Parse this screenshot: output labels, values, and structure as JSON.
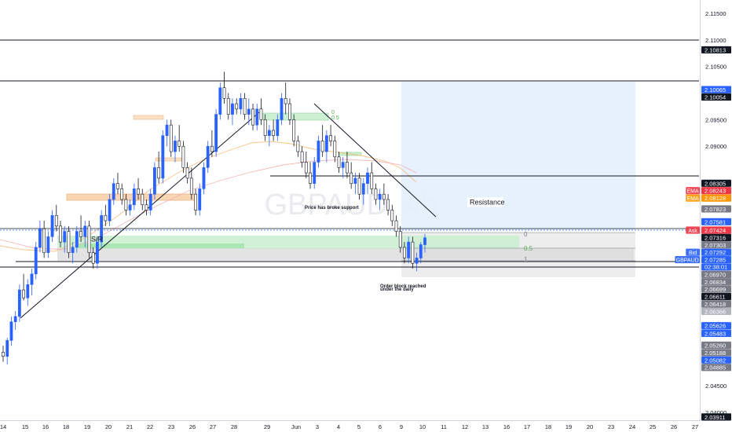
{
  "chart_data": {
    "type": "candlestick",
    "symbol_watermark": "GBPAUD, 4h",
    "y_axis": {
      "side": "right",
      "min": 2.0385,
      "max": 2.1175,
      "tick_labels": [
        "2.11500",
        "2.11000",
        "2.10500",
        "2.09500",
        "2.09000",
        "2.06001",
        "2.04500",
        "2.04000"
      ]
    },
    "x_axis": {
      "tick_labels": [
        "14",
        "15",
        "16",
        "18",
        "19",
        "20",
        "21",
        "22",
        "23",
        "26",
        "27",
        "28",
        "29",
        "Jun",
        "3",
        "4",
        "5",
        "6",
        "9",
        "10",
        "11",
        "12",
        "13",
        "16",
        "17",
        "18",
        "19",
        "20",
        "23",
        "24",
        "25",
        "26",
        "27",
        "30"
      ]
    },
    "price_labels": [
      {
        "value": 2.10813,
        "label": "2.10813",
        "tag": "",
        "color": "#131722"
      },
      {
        "value": 2.10065,
        "label": "2.10065",
        "tag": "",
        "color": "#2962ff"
      },
      {
        "value": 2.10054,
        "label": "2.10054",
        "tag": "",
        "color": "#131722"
      },
      {
        "value": 2.08305,
        "label": "2.08305",
        "tag": "",
        "color": "#131722"
      },
      {
        "value": 2.08243,
        "label": "2.08243",
        "tag": "EMA",
        "color": "#f23645"
      },
      {
        "value": 2.08128,
        "label": "2.08128",
        "tag": "EMA",
        "color": "#ff9800"
      },
      {
        "value": 2.07823,
        "label": "2.07823",
        "tag": "",
        "color": "#787b86"
      },
      {
        "value": 2.07581,
        "label": "2.07581",
        "tag": "",
        "color": "#2962ff"
      },
      {
        "value": 2.07424,
        "label": "2.07424",
        "tag": "Ask",
        "color": "#f23645"
      },
      {
        "value": 2.07316,
        "label": "2.07316",
        "tag": "",
        "color": "#131722"
      },
      {
        "value": 2.07303,
        "label": "2.07303",
        "tag": "",
        "color": "#787b86"
      },
      {
        "value": 2.07292,
        "label": "2.07292",
        "tag": "Bid",
        "color": "#2962ff"
      },
      {
        "value": 2.07285,
        "label": "2.07285",
        "tag": "GBPAUD",
        "color": "#2962ff"
      },
      {
        "value": 2.0697,
        "label": "2.06970",
        "tag": "",
        "color": "#787b86"
      },
      {
        "value": 2.06834,
        "label": "2.06834",
        "tag": "",
        "color": "#787b86"
      },
      {
        "value": 2.06699,
        "label": "2.06699",
        "tag": "",
        "color": "#787b86"
      },
      {
        "value": 2.06611,
        "label": "2.06611",
        "tag": "",
        "color": "#131722"
      },
      {
        "value": 2.06418,
        "label": "2.06418",
        "tag": "",
        "color": "#787b86"
      },
      {
        "value": 2.06366,
        "label": "2.06366",
        "tag": "",
        "color": "#b2b5be"
      },
      {
        "value": 2.05626,
        "label": "2.05626",
        "tag": "",
        "color": "#2962ff"
      },
      {
        "value": 2.05483,
        "label": "2.05483",
        "tag": "",
        "color": "#2962ff"
      },
      {
        "value": 2.0526,
        "label": "2.05260",
        "tag": "",
        "color": "#787b86"
      },
      {
        "value": 2.05188,
        "label": "2.05188",
        "tag": "",
        "color": "#787b86"
      },
      {
        "value": 2.05082,
        "label": "2.05082",
        "tag": "",
        "color": "#2962ff"
      },
      {
        "value": 2.04885,
        "label": "2.04885",
        "tag": "",
        "color": "#787b86"
      },
      {
        "value": 2.03911,
        "label": "2.03911",
        "tag": "",
        "color": "#131722"
      }
    ],
    "countdown": "02:38:01",
    "horizontal_lines": [
      2.10813,
      2.10054,
      2.06611,
      2.06699
    ],
    "annotations": [
      {
        "text": "S/R",
        "value": 2.0725
      },
      {
        "text": "Resistance",
        "value": 2.0795
      },
      {
        "text": "Price has broke support",
        "value": 2.0787
      },
      {
        "text": "Order block reached",
        "value": 2.0639
      },
      {
        "text": "under the daily",
        "value": 2.0633
      }
    ],
    "fib_labels": [
      "0",
      "0.5",
      "1"
    ],
    "fib_small_labels": [
      "0",
      "0.5"
    ],
    "candles": [
      [
        2.0513,
        2.0525,
        2.0495,
        2.0505
      ],
      [
        2.0505,
        2.054,
        2.049,
        2.0535
      ],
      [
        2.0535,
        2.058,
        2.0525,
        2.057
      ],
      [
        2.057,
        2.059,
        2.0555,
        2.058
      ],
      [
        2.058,
        2.064,
        2.057,
        2.063
      ],
      [
        2.063,
        2.066,
        2.061,
        2.0615
      ],
      [
        2.0615,
        2.065,
        2.06,
        2.064
      ],
      [
        2.064,
        2.067,
        2.062,
        2.066
      ],
      [
        2.066,
        2.072,
        2.065,
        2.071
      ],
      [
        2.071,
        2.076,
        2.07,
        2.0745
      ],
      [
        2.0745,
        2.076,
        2.069,
        2.07
      ],
      [
        2.07,
        2.074,
        2.069,
        2.073
      ],
      [
        2.073,
        2.078,
        2.072,
        2.077
      ],
      [
        2.077,
        2.079,
        2.074,
        2.075
      ],
      [
        2.075,
        2.076,
        2.071,
        2.072
      ],
      [
        2.072,
        2.075,
        2.07,
        2.074
      ],
      [
        2.074,
        2.075,
        2.069,
        2.07
      ],
      [
        2.07,
        2.072,
        2.068,
        2.071
      ],
      [
        2.071,
        2.075,
        2.07,
        2.074
      ],
      [
        2.074,
        2.077,
        2.072,
        2.073
      ],
      [
        2.073,
        2.076,
        2.071,
        2.075
      ],
      [
        2.075,
        2.076,
        2.069,
        2.07
      ],
      [
        2.07,
        2.071,
        2.067,
        2.068
      ],
      [
        2.068,
        2.073,
        2.067,
        2.072
      ],
      [
        2.072,
        2.078,
        2.071,
        2.077
      ],
      [
        2.077,
        2.079,
        2.075,
        2.076
      ],
      [
        2.076,
        2.081,
        2.075,
        2.08
      ],
      [
        2.08,
        2.084,
        2.079,
        2.083
      ],
      [
        2.083,
        2.085,
        2.081,
        2.082
      ],
      [
        2.082,
        2.083,
        2.079,
        2.08
      ],
      [
        2.08,
        2.081,
        2.077,
        2.078
      ],
      [
        2.078,
        2.08,
        2.077,
        2.079
      ],
      [
        2.079,
        2.083,
        2.078,
        2.082
      ],
      [
        2.082,
        2.084,
        2.08,
        2.081
      ],
      [
        2.081,
        2.082,
        2.078,
        2.079
      ],
      [
        2.079,
        2.08,
        2.077,
        2.078
      ],
      [
        2.078,
        2.082,
        2.077,
        2.081
      ],
      [
        2.081,
        2.087,
        2.08,
        2.086
      ],
      [
        2.086,
        2.089,
        2.083,
        2.084
      ],
      [
        2.084,
        2.093,
        2.083,
        2.092
      ],
      [
        2.092,
        2.095,
        2.09,
        2.094
      ],
      [
        2.094,
        2.095,
        2.088,
        2.089
      ],
      [
        2.089,
        2.092,
        2.087,
        2.091
      ],
      [
        2.091,
        2.094,
        2.089,
        2.09
      ],
      [
        2.09,
        2.091,
        2.085,
        2.086
      ],
      [
        2.086,
        2.087,
        2.083,
        2.084
      ],
      [
        2.084,
        2.086,
        2.08,
        2.081
      ],
      [
        2.081,
        2.082,
        2.077,
        2.078
      ],
      [
        2.078,
        2.083,
        2.077,
        2.082
      ],
      [
        2.082,
        2.087,
        2.081,
        2.086
      ],
      [
        2.086,
        2.091,
        2.085,
        2.09
      ],
      [
        2.09,
        2.093,
        2.088,
        2.089
      ],
      [
        2.089,
        2.097,
        2.088,
        2.096
      ],
      [
        2.096,
        2.102,
        2.095,
        2.101
      ],
      [
        2.101,
        2.104,
        2.098,
        2.099
      ],
      [
        2.099,
        2.1,
        2.095,
        2.096
      ],
      [
        2.096,
        2.099,
        2.094,
        2.098
      ],
      [
        2.098,
        2.099,
        2.096,
        2.097
      ],
      [
        2.097,
        2.1,
        2.096,
        2.099
      ],
      [
        2.099,
        2.1,
        2.095,
        2.096
      ],
      [
        2.096,
        2.099,
        2.094,
        2.097
      ],
      [
        2.097,
        2.098,
        2.093,
        2.094
      ],
      [
        2.094,
        2.098,
        2.093,
        2.097
      ],
      [
        2.097,
        2.099,
        2.094,
        2.095
      ],
      [
        2.095,
        2.096,
        2.091,
        2.092
      ],
      [
        2.092,
        2.094,
        2.09,
        2.093
      ],
      [
        2.093,
        2.095,
        2.091,
        2.092
      ],
      [
        2.092,
        2.096,
        2.091,
        2.095
      ],
      [
        2.095,
        2.1,
        2.094,
        2.099
      ],
      [
        2.099,
        2.102,
        2.096,
        2.098
      ],
      [
        2.098,
        2.099,
        2.094,
        2.095
      ],
      [
        2.095,
        2.096,
        2.09,
        2.091
      ],
      [
        2.091,
        2.092,
        2.088,
        2.089
      ],
      [
        2.089,
        2.09,
        2.086,
        2.087
      ],
      [
        2.087,
        2.089,
        2.084,
        2.085
      ],
      [
        2.085,
        2.087,
        2.082,
        2.083
      ],
      [
        2.083,
        2.088,
        2.082,
        2.087
      ],
      [
        2.087,
        2.092,
        2.086,
        2.091
      ],
      [
        2.091,
        2.094,
        2.088,
        2.089
      ],
      [
        2.089,
        2.093,
        2.087,
        2.092
      ],
      [
        2.092,
        2.094,
        2.09,
        2.091
      ],
      [
        2.091,
        2.092,
        2.087,
        2.088
      ],
      [
        2.088,
        2.089,
        2.085,
        2.086
      ],
      [
        2.086,
        2.088,
        2.084,
        2.087
      ],
      [
        2.087,
        2.089,
        2.084,
        2.085
      ],
      [
        2.085,
        2.087,
        2.082,
        2.083
      ],
      [
        2.083,
        2.085,
        2.081,
        2.084
      ],
      [
        2.084,
        2.085,
        2.08,
        2.081
      ],
      [
        2.081,
        2.084,
        2.079,
        2.083
      ],
      [
        2.083,
        2.086,
        2.081,
        2.085
      ],
      [
        2.085,
        2.087,
        2.081,
        2.082
      ],
      [
        2.082,
        2.083,
        2.079,
        2.08
      ],
      [
        2.08,
        2.082,
        2.078,
        2.081
      ],
      [
        2.081,
        2.083,
        2.079,
        2.08
      ],
      [
        2.08,
        2.081,
        2.077,
        2.078
      ],
      [
        2.078,
        2.079,
        2.075,
        2.076
      ],
      [
        2.076,
        2.077,
        2.073,
        2.074
      ],
      [
        2.074,
        2.075,
        2.07,
        2.071
      ],
      [
        2.071,
        2.072,
        2.068,
        2.069
      ],
      [
        2.069,
        2.073,
        2.068,
        2.072
      ],
      [
        2.072,
        2.073,
        2.067,
        2.068
      ],
      [
        2.068,
        2.07,
        2.0665,
        2.069
      ],
      [
        2.069,
        2.072,
        2.068,
        2.0715
      ],
      [
        2.0715,
        2.0735,
        2.07,
        2.0728
      ]
    ]
  }
}
